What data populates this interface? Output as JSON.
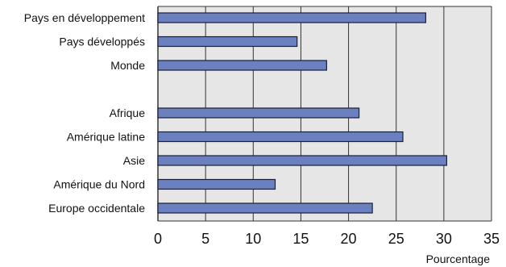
{
  "chart_data": {
    "type": "bar",
    "orientation": "horizontal",
    "categories": [
      "Pays en développement",
      "Pays développés",
      "Monde",
      "",
      "Afrique",
      "Amérique latine",
      "Asie",
      "Amérique du Nord",
      "Europe occidentale"
    ],
    "values": [
      28.1,
      14.6,
      17.7,
      null,
      21.1,
      25.7,
      30.3,
      12.3,
      22.5
    ],
    "xlabel": "Pourcentage",
    "ylabel": "",
    "xlim": [
      0,
      35
    ],
    "xticks": [
      "0",
      "5",
      "10",
      "15",
      "20",
      "25",
      "30",
      "35"
    ],
    "grid": true,
    "colors": {
      "bar_fill": "#6a80bf",
      "bar_stroke": "#1a1f3a",
      "plot_bg": "#e6e6e6",
      "grid": "#333333"
    }
  }
}
